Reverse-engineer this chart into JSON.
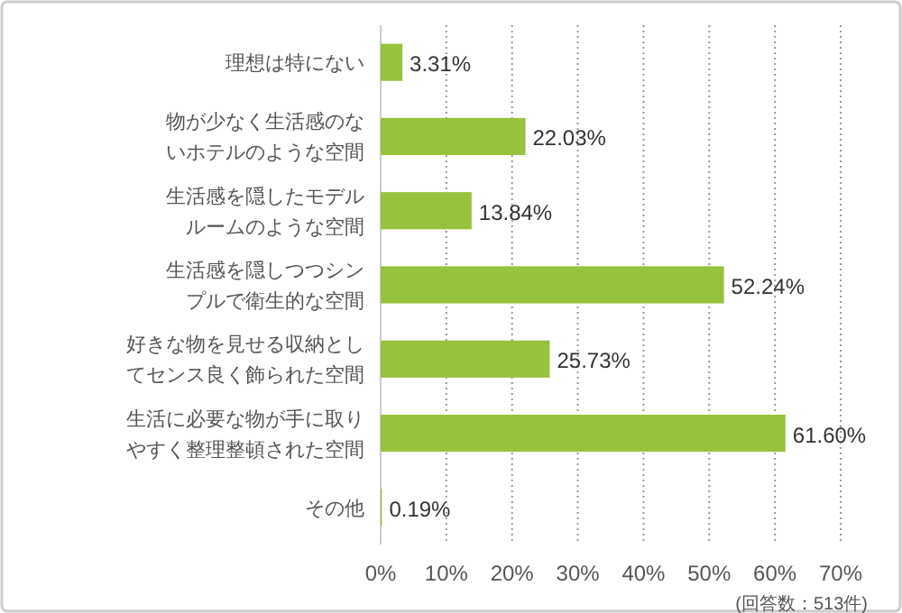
{
  "chart_data": {
    "type": "bar",
    "orientation": "horizontal",
    "categories": [
      "理想は特にない",
      "物が少なく生活感のないホテルのような空間",
      "生活感を隠したモデルルームのような空間",
      "生活感を隠しつつシンプルで衛生的な空間",
      "好きな物を見せる収納としてセンス良く飾られた空間",
      "生活に必要な物が手に取りやすく整理整頓された空間",
      "その他"
    ],
    "values": [
      3.31,
      22.03,
      13.84,
      52.24,
      25.73,
      61.6,
      0.19
    ],
    "value_labels": [
      "3.31%",
      "22.03%",
      "13.84%",
      "52.24%",
      "25.73%",
      "61.60%",
      "0.19%"
    ],
    "color": "#97c23d",
    "xlim": [
      0,
      70
    ],
    "xticks": [
      {
        "value": 0,
        "label": "0%"
      },
      {
        "value": 10,
        "label": "10%"
      },
      {
        "value": 20,
        "label": "20%"
      },
      {
        "value": 30,
        "label": "30%"
      },
      {
        "value": 40,
        "label": "40%"
      },
      {
        "value": 50,
        "label": "50%"
      },
      {
        "value": 60,
        "label": "60%"
      },
      {
        "value": 70,
        "label": "70%"
      }
    ],
    "grid": "x",
    "annotations": [
      "(回答数：513件)"
    ]
  }
}
